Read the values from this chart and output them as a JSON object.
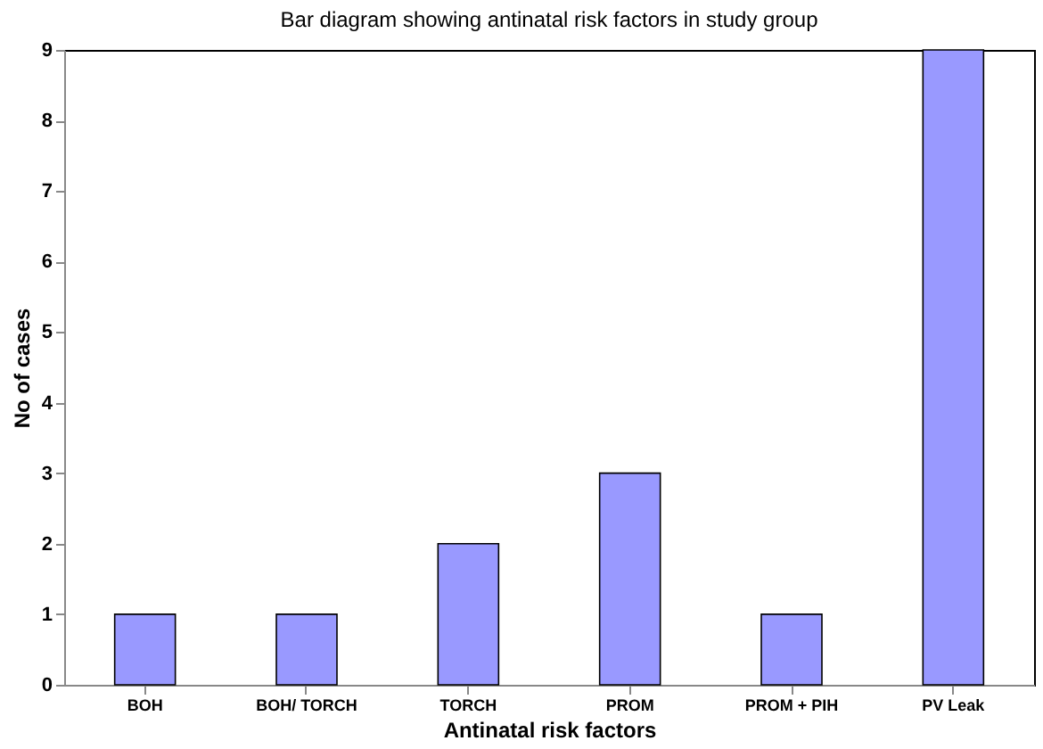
{
  "chart_data": {
    "type": "bar",
    "title": "Bar diagram showing antinatal risk factors in study group",
    "xlabel": "Antinatal risk factors",
    "ylabel": "No of cases",
    "categories": [
      "BOH",
      "BOH/ TORCH",
      "TORCH",
      "PROM",
      "PROM + PIH",
      "PV Leak"
    ],
    "values": [
      1,
      1,
      2,
      3,
      1,
      9
    ],
    "color": "#9999ff",
    "ylim": [
      0,
      9
    ],
    "yticks": [
      0,
      1,
      2,
      3,
      4,
      5,
      6,
      7,
      8,
      9
    ],
    "grid": false
  }
}
